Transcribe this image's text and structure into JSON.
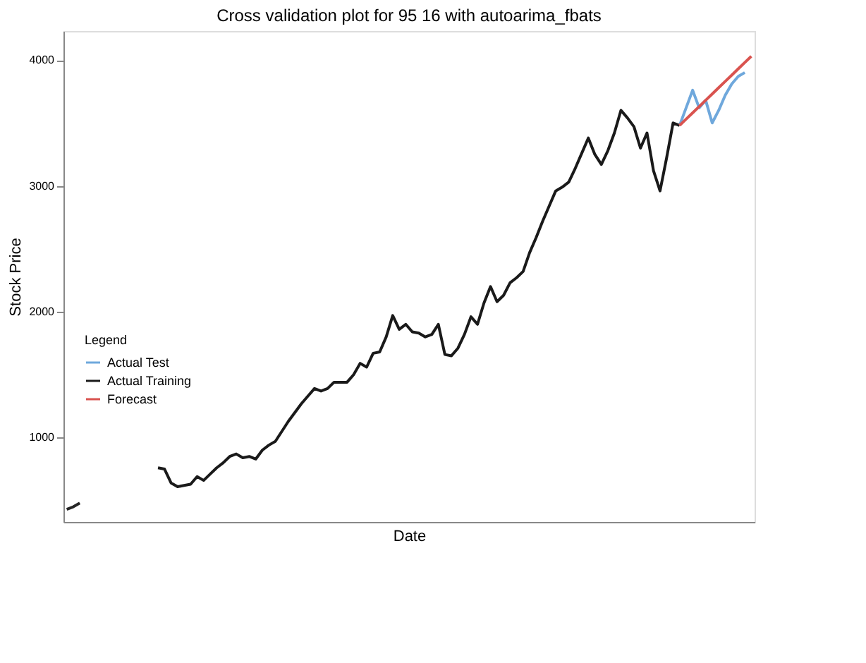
{
  "chart_data": {
    "type": "line",
    "title": "Cross validation plot for 95 16 with autoarima_fbats",
    "xlabel": "Date",
    "ylabel": "Stock Price",
    "legend_title": "Legend",
    "categories": [
      null,
      null,
      null,
      null,
      null,
      null,
      null,
      null,
      null,
      null,
      null,
      null,
      null,
      null,
      null,
      null,
      null,
      null,
      null,
      null,
      null,
      null,
      null,
      null,
      null,
      null,
      null,
      null,
      null,
      null,
      null,
      null,
      null,
      null,
      null,
      null,
      null,
      null,
      null,
      null,
      null,
      null,
      null,
      null,
      null,
      null,
      null,
      null,
      null,
      null,
      null,
      null,
      null,
      null,
      null,
      null,
      null,
      null,
      null,
      null,
      null,
      null,
      null,
      null,
      null,
      null,
      null,
      null,
      null,
      null,
      null,
      null,
      null,
      null,
      null,
      null,
      null,
      null,
      null,
      null,
      null,
      null,
      null,
      null,
      null,
      null,
      null,
      null,
      null,
      null,
      null,
      null,
      null,
      null,
      null,
      null,
      null,
      null,
      null,
      null,
      null,
      null,
      null,
      null,
      null,
      null
    ],
    "ylim": [
      330,
      4230
    ],
    "yticks": [
      1000,
      2000,
      3000,
      4000
    ],
    "tick_labels": "y",
    "grid": false,
    "legend": "bottom left",
    "line_style": "solid",
    "marker": "none",
    "series": [
      {
        "name": "Actual Test",
        "color": "#6fa8dc",
        "values": [
          null,
          null,
          null,
          null,
          null,
          null,
          null,
          null,
          null,
          null,
          null,
          null,
          null,
          null,
          null,
          null,
          null,
          null,
          null,
          null,
          null,
          null,
          null,
          null,
          null,
          null,
          null,
          null,
          null,
          null,
          null,
          null,
          null,
          null,
          null,
          null,
          null,
          null,
          null,
          null,
          null,
          null,
          null,
          null,
          null,
          null,
          null,
          null,
          null,
          null,
          null,
          null,
          null,
          null,
          null,
          null,
          null,
          null,
          null,
          null,
          null,
          null,
          null,
          null,
          null,
          null,
          null,
          null,
          null,
          null,
          null,
          null,
          null,
          null,
          null,
          null,
          null,
          null,
          null,
          null,
          null,
          null,
          null,
          null,
          null,
          null,
          null,
          null,
          null,
          null,
          null,
          null,
          null,
          null,
          3480,
          3620,
          3760,
          3620,
          3680,
          3500,
          3600,
          3720,
          3810,
          3870,
          3900,
          null
        ]
      },
      {
        "color": "#262626",
        "values": [
          430,
          450,
          480,
          null,
          null,
          null,
          null,
          null,
          null,
          null,
          null,
          null,
          null,
          null,
          null,
          null,
          null,
          null,
          null,
          null,
          null,
          null,
          null,
          null,
          null,
          null,
          null,
          null,
          null,
          null,
          null,
          null,
          null,
          null,
          null,
          null,
          null,
          null,
          null,
          null,
          null,
          null,
          null,
          null,
          null,
          null,
          null,
          null,
          null,
          null,
          null,
          null,
          null,
          null,
          null,
          null,
          null,
          null,
          null,
          null,
          null,
          null,
          null,
          null,
          null,
          null,
          null,
          null,
          null,
          null,
          null,
          null,
          null,
          null,
          null,
          null,
          null,
          null,
          null,
          null,
          null,
          null,
          null,
          null,
          null,
          null,
          null,
          null,
          null,
          null,
          null,
          null,
          null,
          null,
          null,
          null,
          null,
          null,
          null,
          null,
          null,
          null,
          null,
          null,
          null,
          null
        ]
      },
      {
        "name": "Actual Training",
        "color": "#1a1a1a",
        "values": [
          null,
          null,
          null,
          null,
          null,
          null,
          null,
          null,
          null,
          null,
          null,
          null,
          null,
          null,
          760,
          750,
          640,
          610,
          620,
          630,
          690,
          660,
          710,
          760,
          800,
          850,
          870,
          840,
          850,
          830,
          900,
          940,
          970,
          1050,
          1130,
          1200,
          1270,
          1330,
          1390,
          1370,
          1390,
          1440,
          1440,
          1440,
          1500,
          1590,
          1560,
          1670,
          1680,
          1800,
          1970,
          1860,
          1900,
          1840,
          1830,
          1800,
          1820,
          1900,
          1660,
          1650,
          1710,
          1820,
          1960,
          1900,
          2070,
          2200,
          2080,
          2130,
          2230,
          2270,
          2320,
          2470,
          2590,
          2720,
          2840,
          2960,
          2990,
          3030,
          3140,
          3260,
          3380,
          3250,
          3170,
          3280,
          3420,
          3600,
          3540,
          3470,
          3300,
          3420,
          3120,
          2960,
          3220,
          3500,
          3480,
          null,
          null,
          null,
          null,
          null,
          null,
          null,
          null,
          null,
          null,
          null
        ]
      },
      {
        "name": "Forecast",
        "color": "#d9534f",
        "values": [
          null,
          null,
          null,
          null,
          null,
          null,
          null,
          null,
          null,
          null,
          null,
          null,
          null,
          null,
          null,
          null,
          null,
          null,
          null,
          null,
          null,
          null,
          null,
          null,
          null,
          null,
          null,
          null,
          null,
          null,
          null,
          null,
          null,
          null,
          null,
          null,
          null,
          null,
          null,
          null,
          null,
          null,
          null,
          null,
          null,
          null,
          null,
          null,
          null,
          null,
          null,
          null,
          null,
          null,
          null,
          null,
          null,
          null,
          null,
          null,
          null,
          null,
          null,
          null,
          null,
          null,
          null,
          null,
          null,
          null,
          null,
          null,
          null,
          null,
          null,
          null,
          null,
          null,
          null,
          null,
          null,
          null,
          null,
          null,
          null,
          null,
          null,
          null,
          null,
          null,
          null,
          null,
          null,
          null,
          3480,
          3530,
          3580,
          3630,
          3680,
          3730,
          3780,
          3830,
          3880,
          3930,
          3980,
          4030
        ]
      }
    ]
  }
}
